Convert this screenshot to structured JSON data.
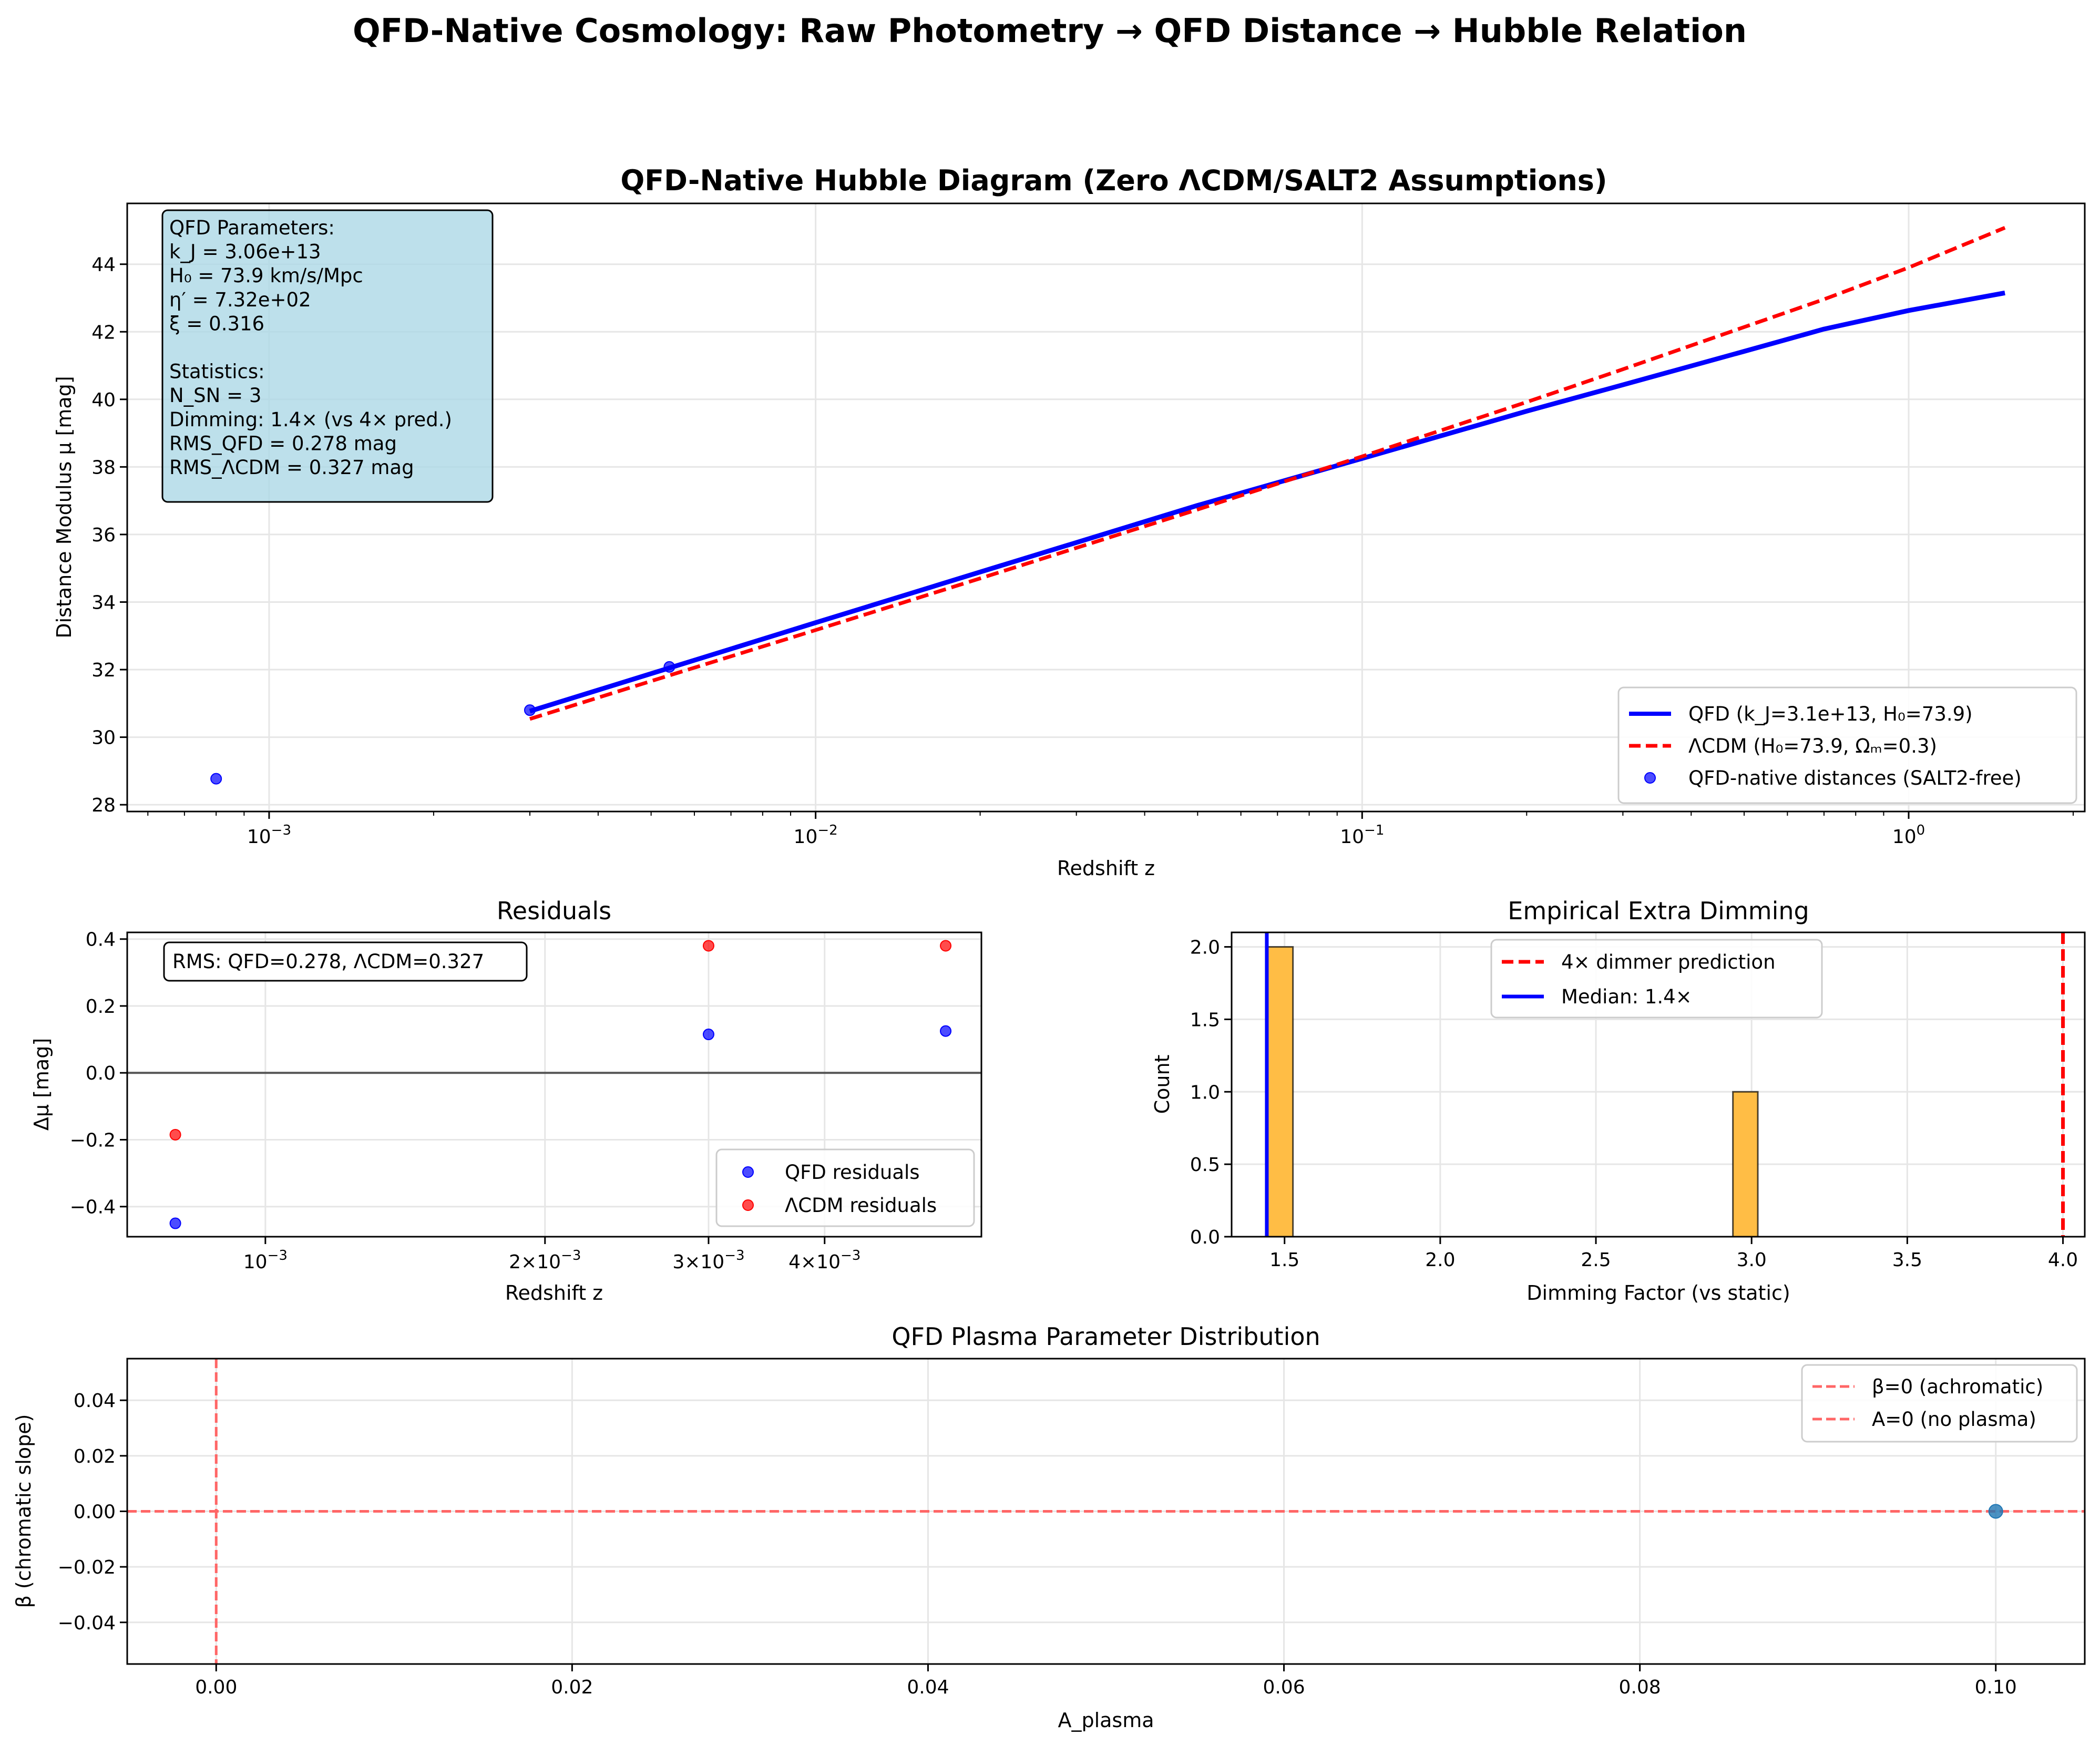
{
  "figure": {
    "suptitle": "QFD-Native Cosmology: Raw Photometry → QFD Distance → Hubble Relation"
  },
  "chart_data": [
    {
      "type": "line",
      "title": "QFD-Native Hubble Diagram (Zero ΛCDM/SALT2 Assumptions)",
      "xlabel": "Redshift z",
      "ylabel": "Distance Modulus μ [mag]",
      "xscale": "log",
      "xlim": [
        0.00055,
        2.1
      ],
      "ylim": [
        27.8,
        45.8
      ],
      "x_ticks": [
        0.001,
        0.01,
        0.1,
        1
      ],
      "x_tick_labels": [
        [
          "10",
          "−3"
        ],
        [
          "10",
          "−2"
        ],
        [
          "10",
          "−1"
        ],
        [
          "10",
          "0"
        ]
      ],
      "y_ticks": [
        28,
        30,
        32,
        34,
        36,
        38,
        40,
        42,
        44
      ],
      "grid": true,
      "legend_position": "lower-right",
      "info_box_lines": [
        "QFD Parameters:",
        "k_J = 3.06e+13",
        "H₀ = 73.9 km/s/Mpc",
        "η′ = 7.32e+02",
        "ξ = 0.316",
        "",
        "Statistics:",
        "N_SN = 3",
        "Dimming: 1.4× (vs 4× pred.)",
        "RMS_QFD = 0.278 mag",
        "RMS_ΛCDM = 0.327 mag"
      ],
      "series": [
        {
          "name": "QFD (k_J=3.1e+13, H₀=73.9)",
          "style": "solid",
          "color": "#0000ff",
          "x": [
            0.003,
            0.005,
            0.01,
            0.02,
            0.05,
            0.1,
            0.2,
            0.3,
            0.5,
            0.7,
            1.0,
            1.5
          ],
          "y": [
            30.77,
            31.88,
            33.39,
            34.89,
            36.86,
            38.25,
            39.65,
            40.43,
            41.42,
            42.08,
            42.63,
            43.15
          ]
        },
        {
          "name": "ΛCDM (H₀=73.9, Ωₘ=0.3)",
          "style": "dashed",
          "color": "#ff0000",
          "x": [
            0.003,
            0.005,
            0.01,
            0.02,
            0.05,
            0.1,
            0.2,
            0.3,
            0.5,
            0.7,
            1.0,
            1.5
          ],
          "y": [
            30.54,
            31.66,
            33.17,
            34.7,
            36.74,
            38.31,
            39.92,
            40.89,
            42.14,
            42.96,
            43.9,
            45.08
          ]
        },
        {
          "name": "QFD-native distances (SALT2-free)",
          "style": "points",
          "color": "#0000ff",
          "x": [
            0.0008,
            0.003,
            0.0054
          ],
          "y": [
            28.77,
            30.8,
            32.08
          ]
        }
      ]
    },
    {
      "type": "scatter",
      "title": "Residuals",
      "xlabel": "Redshift z",
      "ylabel": "Δμ [mag]",
      "xscale": "log",
      "xlim": [
        0.00071,
        0.0059
      ],
      "ylim": [
        -0.49,
        0.42
      ],
      "x_ticks": [
        0.001,
        0.002,
        0.003,
        0.004
      ],
      "x_tick_labels": [
        [
          "10",
          "−3"
        ],
        [
          "2×10",
          "−3"
        ],
        [
          "3×10",
          "−3"
        ],
        [
          "4×10",
          "−3"
        ]
      ],
      "y_ticks": [
        -0.4,
        -0.2,
        0.0,
        0.2,
        0.4
      ],
      "y_tick_labels": [
        "−0.4",
        "−0.2",
        "0.0",
        "0.2",
        "0.4"
      ],
      "grid": true,
      "legend_position": "lower-right",
      "annotation": "RMS: QFD=0.278, ΛCDM=0.327",
      "series": [
        {
          "name": "QFD residuals",
          "color": "#0000ff",
          "x": [
            0.0008,
            0.003,
            0.0054
          ],
          "y": [
            -0.45,
            0.115,
            0.125
          ]
        },
        {
          "name": "ΛCDM residuals",
          "color": "#ff0000",
          "x": [
            0.0008,
            0.003,
            0.0054
          ],
          "y": [
            -0.185,
            0.38,
            0.38
          ]
        }
      ]
    },
    {
      "type": "bar",
      "title": "Empirical Extra Dimming",
      "xlabel": "Dimming Factor (vs static)",
      "ylabel": "Count",
      "xlim": [
        1.33,
        4.07
      ],
      "ylim": [
        0,
        2.1
      ],
      "x_ticks": [
        1.5,
        2.0,
        2.5,
        3.0,
        3.5,
        4.0
      ],
      "x_tick_labels": [
        "1.5",
        "2.0",
        "2.5",
        "3.0",
        "3.5",
        "4.0"
      ],
      "y_ticks": [
        0.0,
        0.5,
        1.0,
        1.5,
        2.0
      ],
      "y_tick_labels": [
        "0.0",
        "0.5",
        "1.0",
        "1.5",
        "2.0"
      ],
      "grid": true,
      "legend_position": "top-center",
      "bar_color": "#ffbd45",
      "bins": [
        {
          "x0": 1.443,
          "x1": 1.527,
          "count": 2
        },
        {
          "x0": 2.94,
          "x1": 3.02,
          "count": 1
        }
      ],
      "lines": [
        {
          "name": "4× dimmer prediction",
          "x": 4.0,
          "color": "#ff0000",
          "style": "dashed"
        },
        {
          "name": "Median: 1.4×",
          "x": 1.443,
          "color": "#0000ff",
          "style": "solid"
        }
      ]
    },
    {
      "type": "scatter",
      "title": "QFD Plasma Parameter Distribution",
      "xlabel": "A_plasma",
      "ylabel": "β (chromatic slope)",
      "xlim": [
        -0.005,
        0.105
      ],
      "ylim": [
        -0.055,
        0.055
      ],
      "x_ticks": [
        0.0,
        0.02,
        0.04,
        0.06,
        0.08,
        0.1
      ],
      "x_tick_labels": [
        "0.00",
        "0.02",
        "0.04",
        "0.06",
        "0.08",
        "0.10"
      ],
      "y_ticks": [
        -0.04,
        -0.02,
        0.0,
        0.02,
        0.04
      ],
      "y_tick_labels": [
        "−0.04",
        "−0.02",
        "0.00",
        "0.02",
        "0.04"
      ],
      "grid": true,
      "legend_position": "top-right",
      "points": {
        "x": [
          0.1
        ],
        "y": [
          0.0
        ],
        "color": "#1f77b4"
      },
      "reference_lines": [
        {
          "name": "β=0 (achromatic)",
          "orientation": "horizontal",
          "value": 0.0,
          "color": "#ff6666"
        },
        {
          "name": "A=0 (no plasma)",
          "orientation": "vertical",
          "value": 0.0,
          "color": "#ff6666"
        }
      ]
    }
  ]
}
